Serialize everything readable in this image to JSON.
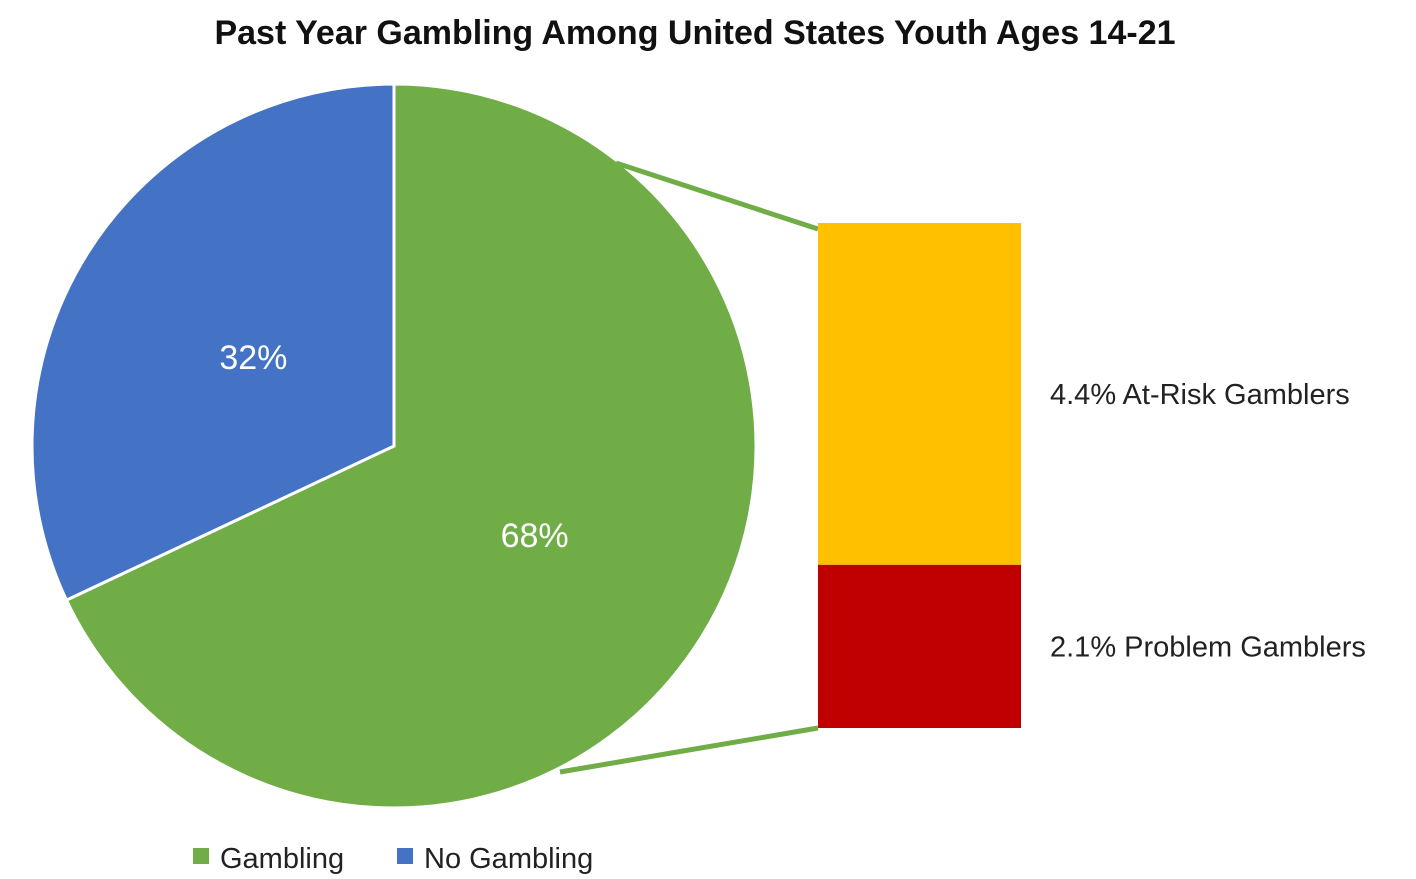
{
  "chart_data": {
    "type": "pie",
    "title": "Past Year Gambling Among United States Youth Ages 14-21",
    "slices": [
      {
        "name": "Gambling",
        "value": 68,
        "label": "68%",
        "color": "#70AD47"
      },
      {
        "name": "No Gambling",
        "value": 32,
        "label": "32%",
        "color": "#4472C4"
      }
    ],
    "breakdown": {
      "of_slice": "Gambling",
      "type": "stacked-bar",
      "segments": [
        {
          "value": 4.4,
          "label": "4.4% At-Risk Gamblers",
          "color": "#FFC000"
        },
        {
          "value": 2.1,
          "label": "2.1% Problem Gamblers",
          "color": "#C00000"
        }
      ]
    },
    "legend": {
      "placement": "bottom-left",
      "entries": [
        {
          "name": "Gambling",
          "color": "#70AD47"
        },
        {
          "name": "No Gambling",
          "color": "#4472C4"
        }
      ]
    }
  }
}
